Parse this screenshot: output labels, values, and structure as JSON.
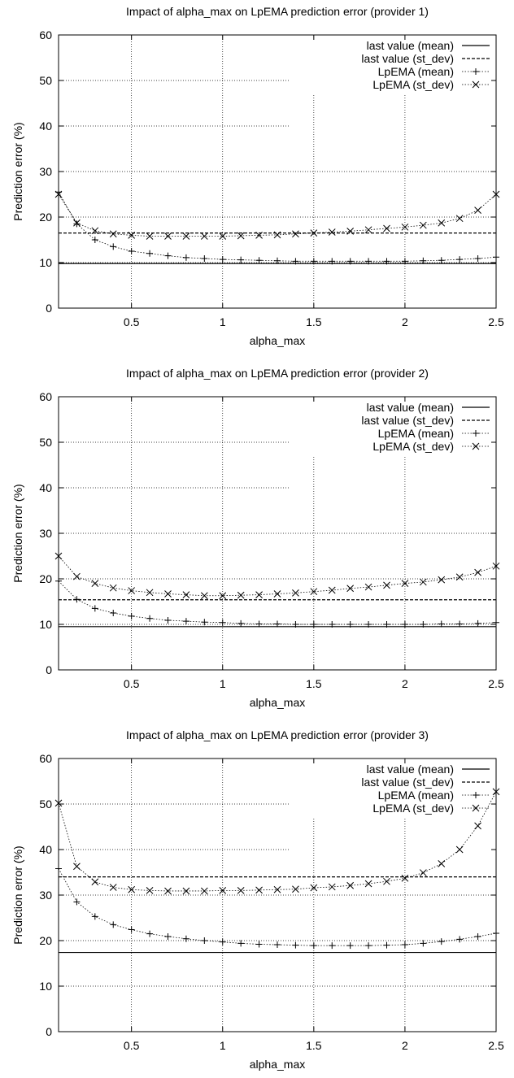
{
  "chart_data": [
    {
      "type": "line",
      "title": "Impact of alpha_max on LpEMA prediction error (provider 1)",
      "xlabel": "alpha_max",
      "ylabel": "Prediction error (%)",
      "xlim": [
        0.1,
        2.5
      ],
      "ylim": [
        0,
        60
      ],
      "xticks": [
        "0.5",
        "1",
        "1.5",
        "2",
        "2.5"
      ],
      "yticks": [
        "0",
        "10",
        "20",
        "30",
        "40",
        "50",
        "60"
      ],
      "grid": true,
      "legend_position": "top-right",
      "reference_lines": [
        {
          "name": "last value (mean)",
          "y": 9.8,
          "style": "solid"
        },
        {
          "name": "last value (st_dev)",
          "y": 16.5,
          "style": "dashed"
        }
      ],
      "x": [
        0.1,
        0.2,
        0.3,
        0.4,
        0.5,
        0.6,
        0.7,
        0.8,
        0.9,
        1.0,
        1.1,
        1.2,
        1.3,
        1.4,
        1.5,
        1.6,
        1.7,
        1.8,
        1.9,
        2.0,
        2.1,
        2.2,
        2.3,
        2.4,
        2.5
      ],
      "series": [
        {
          "name": "LpEMA (mean)",
          "marker": "plus",
          "values": [
            25.5,
            18.5,
            15.0,
            13.5,
            12.5,
            12.0,
            11.5,
            11.1,
            10.9,
            10.7,
            10.6,
            10.5,
            10.4,
            10.3,
            10.3,
            10.3,
            10.3,
            10.3,
            10.3,
            10.3,
            10.4,
            10.5,
            10.7,
            10.9,
            11.2
          ]
        },
        {
          "name": "LpEMA (st_dev)",
          "marker": "cross",
          "values": [
            25.0,
            18.7,
            17.0,
            16.3,
            16.0,
            15.8,
            15.8,
            15.8,
            15.8,
            15.8,
            15.9,
            16.0,
            16.1,
            16.3,
            16.5,
            16.7,
            16.9,
            17.2,
            17.5,
            17.8,
            18.2,
            18.7,
            19.7,
            21.5,
            25.0
          ]
        }
      ]
    },
    {
      "type": "line",
      "title": "Impact of alpha_max on LpEMA prediction error (provider 2)",
      "xlabel": "alpha_max",
      "ylabel": "Prediction error (%)",
      "xlim": [
        0.1,
        2.5
      ],
      "ylim": [
        0,
        60
      ],
      "xticks": [
        "0.5",
        "1",
        "1.5",
        "2",
        "2.5"
      ],
      "yticks": [
        "0",
        "10",
        "20",
        "30",
        "40",
        "50",
        "60"
      ],
      "grid": true,
      "legend_position": "top-right",
      "reference_lines": [
        {
          "name": "last value (mean)",
          "y": 9.5,
          "style": "solid"
        },
        {
          "name": "last value (st_dev)",
          "y": 15.4,
          "style": "dashed"
        }
      ],
      "x": [
        0.1,
        0.2,
        0.3,
        0.4,
        0.5,
        0.6,
        0.7,
        0.8,
        0.9,
        1.0,
        1.1,
        1.2,
        1.3,
        1.4,
        1.5,
        1.6,
        1.7,
        1.8,
        1.9,
        2.0,
        2.1,
        2.2,
        2.3,
        2.4,
        2.5
      ],
      "series": [
        {
          "name": "LpEMA (mean)",
          "marker": "plus",
          "values": [
            19.5,
            15.5,
            13.5,
            12.5,
            11.8,
            11.3,
            10.9,
            10.7,
            10.5,
            10.4,
            10.2,
            10.1,
            10.1,
            10.0,
            10.0,
            10.0,
            10.0,
            10.0,
            10.0,
            10.0,
            10.0,
            10.1,
            10.1,
            10.2,
            10.4
          ]
        },
        {
          "name": "LpEMA (st_dev)",
          "marker": "cross",
          "values": [
            25.0,
            20.5,
            19.0,
            18.0,
            17.4,
            17.0,
            16.7,
            16.5,
            16.3,
            16.3,
            16.4,
            16.5,
            16.7,
            16.9,
            17.2,
            17.5,
            17.9,
            18.2,
            18.6,
            19.0,
            19.3,
            19.8,
            20.4,
            21.4,
            22.8
          ]
        }
      ]
    },
    {
      "type": "line",
      "title": "Impact of alpha_max on LpEMA prediction error (provider 3)",
      "xlabel": "alpha_max",
      "ylabel": "Prediction error (%)",
      "xlim": [
        0.1,
        2.5
      ],
      "ylim": [
        0,
        60
      ],
      "xticks": [
        "0.5",
        "1",
        "1.5",
        "2",
        "2.5"
      ],
      "yticks": [
        "0",
        "10",
        "20",
        "30",
        "40",
        "50",
        "60"
      ],
      "grid": true,
      "legend_position": "top-right",
      "reference_lines": [
        {
          "name": "last value (mean)",
          "y": 17.4,
          "style": "solid"
        },
        {
          "name": "last value (st_dev)",
          "y": 34.0,
          "style": "dashed"
        }
      ],
      "x": [
        0.1,
        0.2,
        0.3,
        0.4,
        0.5,
        0.6,
        0.7,
        0.8,
        0.9,
        1.0,
        1.1,
        1.2,
        1.3,
        1.4,
        1.5,
        1.6,
        1.7,
        1.8,
        1.9,
        2.0,
        2.1,
        2.2,
        2.3,
        2.4,
        2.5
      ],
      "series": [
        {
          "name": "LpEMA (mean)",
          "marker": "plus",
          "values": [
            35.8,
            28.5,
            25.3,
            23.5,
            22.4,
            21.5,
            20.9,
            20.4,
            20.0,
            19.7,
            19.4,
            19.2,
            19.1,
            19.0,
            18.9,
            18.9,
            18.9,
            18.9,
            19.0,
            19.1,
            19.4,
            19.8,
            20.3,
            20.9,
            21.6
          ]
        },
        {
          "name": "LpEMA (st_dev)",
          "marker": "cross",
          "values": [
            50.2,
            36.3,
            32.9,
            31.7,
            31.2,
            31.0,
            30.9,
            30.9,
            30.9,
            31.0,
            31.0,
            31.1,
            31.2,
            31.3,
            31.6,
            31.8,
            32.1,
            32.5,
            33.0,
            33.7,
            34.9,
            36.9,
            40.0,
            45.2,
            52.7
          ]
        }
      ]
    }
  ]
}
